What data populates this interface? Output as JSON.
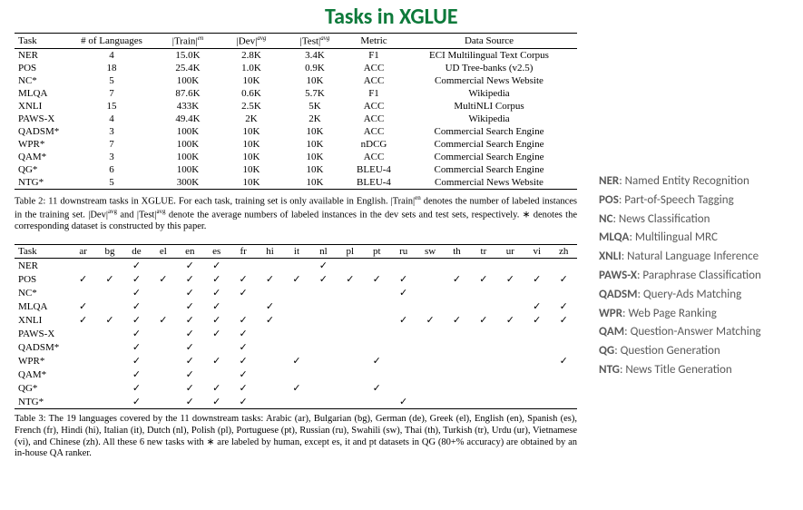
{
  "title": "Tasks in XGLUE",
  "colors": {
    "title": "#0e7a3b",
    "text": "#000000",
    "legend_text": "#595959",
    "background": "#ffffff"
  },
  "typography": {
    "title_font": "Segoe UI",
    "title_fontsize": 24,
    "title_weight": 600,
    "body_font": "Times New Roman",
    "body_fontsize": 11,
    "caption_fontsize": 10.5,
    "legend_font": "Segoe UI",
    "legend_fontsize": 13
  },
  "table2": {
    "headers": [
      "Task",
      "# of Languages",
      "|Train|ᵉⁿ",
      "|Dev|ᵃᵛᵍ",
      "|Test|ᵃᵛᵍ",
      "Metric",
      "Data Source"
    ],
    "header_superscripts": [
      "",
      "",
      "en",
      "avg",
      "avg",
      "",
      ""
    ],
    "header_plain": [
      "Task",
      "# of Languages",
      "|Train|",
      "|Dev|",
      "|Test|",
      "Metric",
      "Data Source"
    ],
    "rows": [
      [
        "NER",
        "4",
        "15.0K",
        "2.8K",
        "3.4K",
        "F1",
        "ECI Multilingual Text Corpus"
      ],
      [
        "POS",
        "18",
        "25.4K",
        "1.0K",
        "0.9K",
        "ACC",
        "UD Tree-banks (v2.5)"
      ],
      [
        "NC*",
        "5",
        "100K",
        "10K",
        "10K",
        "ACC",
        "Commercial News Website"
      ],
      [
        "MLQA",
        "7",
        "87.6K",
        "0.6K",
        "5.7K",
        "F1",
        "Wikipedia"
      ],
      [
        "XNLI",
        "15",
        "433K",
        "2.5K",
        "5K",
        "ACC",
        "MultiNLI Corpus"
      ],
      [
        "PAWS-X",
        "4",
        "49.4K",
        "2K",
        "2K",
        "ACC",
        "Wikipedia"
      ],
      [
        "QADSM*",
        "3",
        "100K",
        "10K",
        "10K",
        "ACC",
        "Commercial Search Engine"
      ],
      [
        "WPR*",
        "7",
        "100K",
        "10K",
        "10K",
        "nDCG",
        "Commercial Search Engine"
      ],
      [
        "QAM*",
        "3",
        "100K",
        "10K",
        "10K",
        "ACC",
        "Commercial Search Engine"
      ],
      [
        "QG*",
        "6",
        "100K",
        "10K",
        "10K",
        "BLEU-4",
        "Commercial Search Engine"
      ],
      [
        "NTG*",
        "5",
        "300K",
        "10K",
        "10K",
        "BLEU-4",
        "Commercial News Website"
      ]
    ],
    "caption_parts": {
      "p1": "Table 2: 11 downstream tasks in XGLUE. For each task, training set is only available in English. |Train|",
      "s1": "en",
      "p2": " denotes the number of labeled instances in the training set. |Dev|",
      "s2": "avg",
      "p3": " and |Test|",
      "s3": "avg",
      "p4": " denote the average numbers of labeled instances in the dev sets and test sets, respectively. ∗ denotes the corresponding dataset is constructed by this paper."
    }
  },
  "table3": {
    "task_header": "Task",
    "langs": [
      "ar",
      "bg",
      "de",
      "el",
      "en",
      "es",
      "fr",
      "hi",
      "it",
      "nl",
      "pl",
      "pt",
      "ru",
      "sw",
      "th",
      "tr",
      "ur",
      "vi",
      "zh"
    ],
    "rows": [
      {
        "task": "NER",
        "marks": [
          0,
          0,
          1,
          0,
          1,
          1,
          0,
          0,
          0,
          1,
          0,
          0,
          0,
          0,
          0,
          0,
          0,
          0,
          0
        ]
      },
      {
        "task": "POS",
        "marks": [
          1,
          1,
          1,
          1,
          1,
          1,
          1,
          1,
          1,
          1,
          1,
          1,
          1,
          0,
          1,
          1,
          1,
          1,
          1
        ]
      },
      {
        "task": "NC*",
        "marks": [
          0,
          0,
          1,
          0,
          1,
          1,
          1,
          0,
          0,
          0,
          0,
          0,
          1,
          0,
          0,
          0,
          0,
          0,
          0
        ]
      },
      {
        "task": "MLQA",
        "marks": [
          1,
          0,
          1,
          0,
          1,
          1,
          0,
          1,
          0,
          0,
          0,
          0,
          0,
          0,
          0,
          0,
          0,
          1,
          1
        ]
      },
      {
        "task": "XNLI",
        "marks": [
          1,
          1,
          1,
          1,
          1,
          1,
          1,
          1,
          0,
          0,
          0,
          0,
          1,
          1,
          1,
          1,
          1,
          1,
          1
        ]
      },
      {
        "task": "PAWS-X",
        "marks": [
          0,
          0,
          1,
          0,
          1,
          1,
          1,
          0,
          0,
          0,
          0,
          0,
          0,
          0,
          0,
          0,
          0,
          0,
          0
        ]
      },
      {
        "task": "QADSM*",
        "marks": [
          0,
          0,
          1,
          0,
          1,
          0,
          1,
          0,
          0,
          0,
          0,
          0,
          0,
          0,
          0,
          0,
          0,
          0,
          0
        ]
      },
      {
        "task": "WPR*",
        "marks": [
          0,
          0,
          1,
          0,
          1,
          1,
          1,
          0,
          1,
          0,
          0,
          1,
          0,
          0,
          0,
          0,
          0,
          0,
          1
        ]
      },
      {
        "task": "QAM*",
        "marks": [
          0,
          0,
          1,
          0,
          1,
          0,
          1,
          0,
          0,
          0,
          0,
          0,
          0,
          0,
          0,
          0,
          0,
          0,
          0
        ]
      },
      {
        "task": "QG*",
        "marks": [
          0,
          0,
          1,
          0,
          1,
          1,
          1,
          0,
          1,
          0,
          0,
          1,
          0,
          0,
          0,
          0,
          0,
          0,
          0
        ]
      },
      {
        "task": "NTG*",
        "marks": [
          0,
          0,
          1,
          0,
          1,
          1,
          1,
          0,
          0,
          0,
          0,
          0,
          1,
          0,
          0,
          0,
          0,
          0,
          0
        ]
      }
    ],
    "caption": "Table 3: The 19 languages covered by the 11 downstream tasks: Arabic (ar), Bulgarian (bg), German (de), Greek (el), English (en), Spanish (es), French (fr), Hindi (hi), Italian (it), Dutch (nl), Polish (pl), Portuguese (pt), Russian (ru), Swahili (sw), Thai (th), Turkish (tr), Urdu (ur), Vietnamese (vi), and Chinese (zh). All these 6 new tasks with ∗ are labeled by human, except es, it and pt datasets in QG (80+% accuracy) are obtained by an in-house QA ranker."
  },
  "checkmark": "✓",
  "legend": [
    {
      "abbrev": "NER",
      "desc": "Named Entity Recognition"
    },
    {
      "abbrev": "POS",
      "desc": "Part-of-Speech Tagging"
    },
    {
      "abbrev": "NC",
      "desc": "News Classification"
    },
    {
      "abbrev": "MLQA",
      "desc": "Multilingual MRC"
    },
    {
      "abbrev": "XNLI",
      "desc": "Natural Language Inference"
    },
    {
      "abbrev": "PAWS-X",
      "desc": "Paraphrase Classification"
    },
    {
      "abbrev": "QADSM",
      "desc": "Query-Ads Matching"
    },
    {
      "abbrev": "WPR",
      "desc": "Web Page Ranking"
    },
    {
      "abbrev": "QAM",
      "desc": "Question-Answer Matching"
    },
    {
      "abbrev": "QG",
      "desc": "Question Generation"
    },
    {
      "abbrev": "NTG",
      "desc": "News Title Generation"
    }
  ]
}
